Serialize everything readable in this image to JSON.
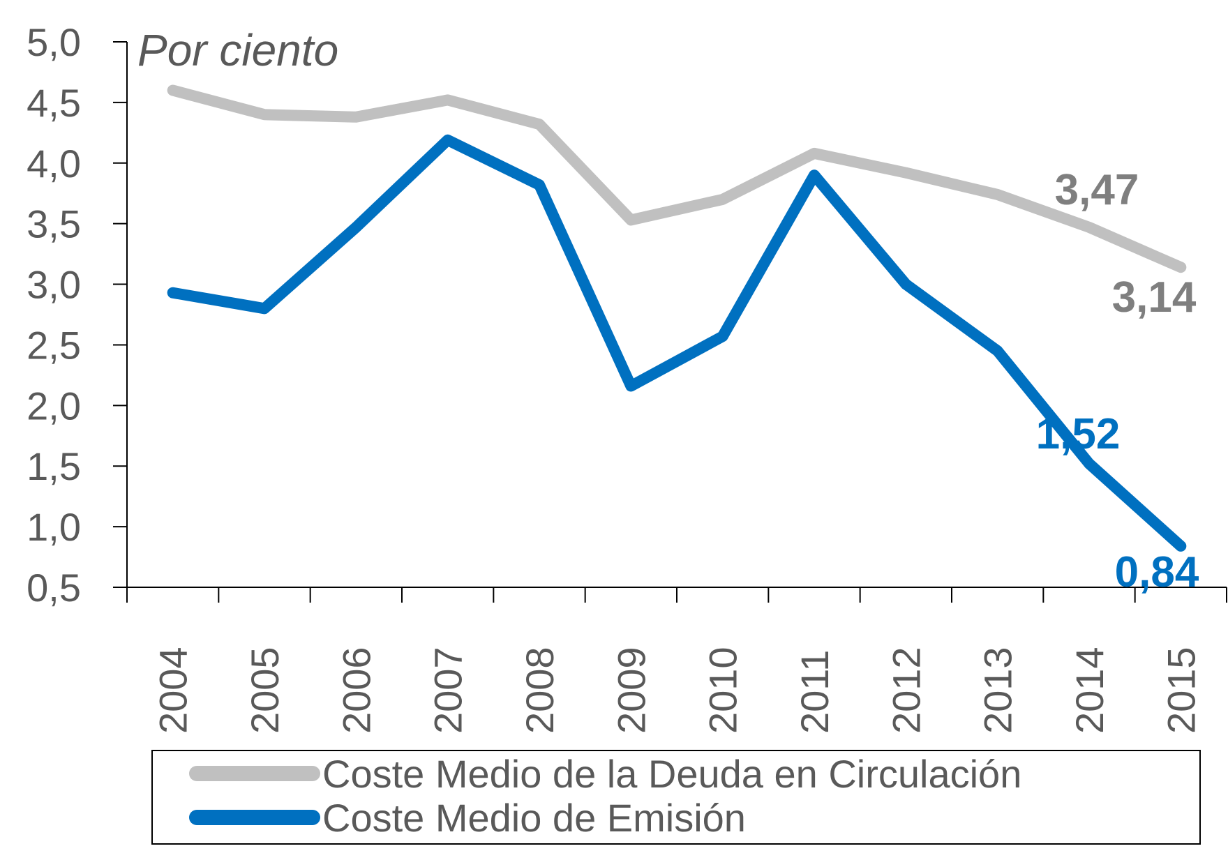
{
  "chart_data": {
    "type": "line",
    "unit_label": "Por ciento",
    "categories": [
      "2004",
      "2005",
      "2006",
      "2007",
      "2008",
      "2009",
      "2010",
      "2011",
      "2012",
      "2013",
      "2014",
      "2015"
    ],
    "ylim": [
      0.5,
      5.0
    ],
    "yticks": [
      "0,5",
      "1,0",
      "1,5",
      "2,0",
      "2,5",
      "3,0",
      "3,5",
      "4,0",
      "4,5",
      "5,0"
    ],
    "yticks_values": [
      0.5,
      1.0,
      1.5,
      2.0,
      2.5,
      3.0,
      3.5,
      4.0,
      4.5,
      5.0
    ],
    "grid": false,
    "legend_position": "bottom",
    "series": [
      {
        "name": "Coste Medio de la Deuda en Circulación",
        "color": "#c0c0c0",
        "label_color": "#7f7f7f",
        "values": [
          4.6,
          4.4,
          4.38,
          4.52,
          4.32,
          3.53,
          3.7,
          4.08,
          3.92,
          3.74,
          3.47,
          3.14
        ],
        "data_labels": [
          {
            "index": 10,
            "text": "3,47"
          },
          {
            "index": 11,
            "text": "3,14"
          }
        ]
      },
      {
        "name": "Coste Medio de Emisión",
        "color": "#0070c0",
        "label_color": "#0070c0",
        "values": [
          2.93,
          2.8,
          3.47,
          4.19,
          3.82,
          2.16,
          2.57,
          3.9,
          3.0,
          2.45,
          1.52,
          0.84
        ],
        "data_labels": [
          {
            "index": 10,
            "text": "1,52"
          },
          {
            "index": 11,
            "text": "0,84"
          }
        ]
      }
    ]
  }
}
